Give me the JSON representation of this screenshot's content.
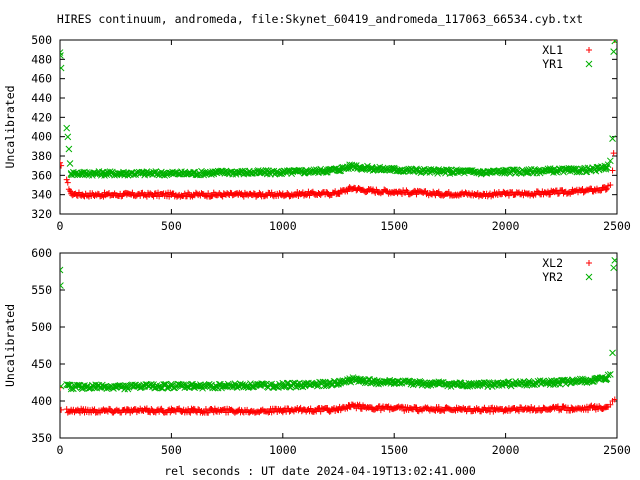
{
  "figure": {
    "title": "HIRES continuum, andromeda, file:Skynet_60419_andromeda_117063_66534.cyb.txt",
    "xlabel": "rel seconds : UT date 2024-04-19T13:02:41.000"
  },
  "colors": {
    "red": "#ff0000",
    "green": "#00b000",
    "axes": "#000000"
  },
  "chart_data": [
    {
      "type": "scatter",
      "ylabel": "Uncalibrated",
      "xlim": [
        0,
        2500
      ],
      "ylim": [
        320,
        500
      ],
      "xticks": [
        0,
        500,
        1000,
        1500,
        2000,
        2500
      ],
      "yticks": [
        320,
        340,
        360,
        380,
        400,
        420,
        440,
        460,
        480,
        500
      ],
      "legend_position": "top-right",
      "series": [
        {
          "name": "XL1",
          "marker": "plus",
          "color": "#ff0000",
          "x": [
            0,
            5,
            50,
            100,
            200,
            300,
            400,
            500,
            600,
            700,
            800,
            900,
            1000,
            1100,
            1200,
            1250,
            1300,
            1320,
            1350,
            1400,
            1500,
            1600,
            1700,
            1800,
            1900,
            2000,
            2100,
            2200,
            2300,
            2400,
            2450,
            2470,
            2480,
            2485,
            2490
          ],
          "y": [
            373,
            370,
            341,
            340,
            340,
            340,
            340,
            340,
            340,
            340,
            340,
            340,
            340,
            341,
            341,
            342,
            346,
            347,
            345,
            344,
            343,
            342,
            341,
            341,
            340,
            341,
            341,
            342,
            343,
            345,
            346,
            350,
            365,
            383,
            500
          ]
        },
        {
          "name": "YR1",
          "marker": "cross",
          "color": "#00b000",
          "x": [
            0,
            2,
            5,
            50,
            100,
            200,
            300,
            400,
            500,
            600,
            700,
            800,
            900,
            1000,
            1100,
            1200,
            1250,
            1300,
            1320,
            1350,
            1400,
            1500,
            1600,
            1700,
            1800,
            1900,
            2000,
            2100,
            2200,
            2300,
            2400,
            2450,
            2470,
            2480,
            2485,
            2490
          ],
          "y": [
            487,
            484,
            471,
            362,
            362,
            362,
            362,
            362,
            362,
            362,
            363,
            363,
            363,
            363,
            364,
            365,
            366,
            369,
            370,
            368,
            367,
            366,
            365,
            364,
            364,
            363,
            364,
            364,
            365,
            365,
            366,
            368,
            375,
            398,
            488,
            499
          ]
        }
      ]
    },
    {
      "type": "scatter",
      "ylabel": "Uncalibrated",
      "xlim": [
        0,
        2500
      ],
      "ylim": [
        350,
        600
      ],
      "xticks": [
        0,
        500,
        1000,
        1500,
        2000,
        2500
      ],
      "yticks": [
        350,
        400,
        450,
        500,
        550,
        600
      ],
      "legend_position": "top-right",
      "series": [
        {
          "name": "XL2",
          "marker": "plus",
          "color": "#ff0000",
          "x": [
            0,
            5,
            50,
            100,
            200,
            300,
            400,
            500,
            600,
            700,
            800,
            900,
            1000,
            1100,
            1200,
            1250,
            1300,
            1320,
            1350,
            1400,
            1500,
            1600,
            1700,
            1800,
            1900,
            2000,
            2100,
            2200,
            2300,
            2400,
            2450,
            2470,
            2480,
            2490
          ],
          "y": [
            418,
            388,
            387,
            387,
            387,
            387,
            387,
            387,
            387,
            387,
            387,
            387,
            387,
            388,
            388,
            389,
            392,
            393,
            392,
            391,
            390,
            389,
            389,
            388,
            388,
            389,
            389,
            390,
            390,
            391,
            392,
            395,
            400,
            402
          ]
        },
        {
          "name": "YR2",
          "marker": "cross",
          "color": "#00b000",
          "x": [
            0,
            2,
            5,
            50,
            100,
            200,
            300,
            400,
            500,
            600,
            700,
            800,
            900,
            1000,
            1100,
            1200,
            1250,
            1300,
            1320,
            1350,
            1400,
            1500,
            1600,
            1700,
            1800,
            1900,
            2000,
            2100,
            2200,
            2300,
            2400,
            2450,
            2470,
            2480,
            2485,
            2490
          ],
          "y": [
            577,
            556,
            420,
            419,
            419,
            419,
            419,
            420,
            420,
            420,
            420,
            421,
            421,
            421,
            422,
            423,
            424,
            428,
            430,
            427,
            426,
            425,
            424,
            423,
            422,
            422,
            423,
            424,
            425,
            426,
            428,
            430,
            436,
            465,
            580,
            590
          ]
        }
      ]
    }
  ]
}
